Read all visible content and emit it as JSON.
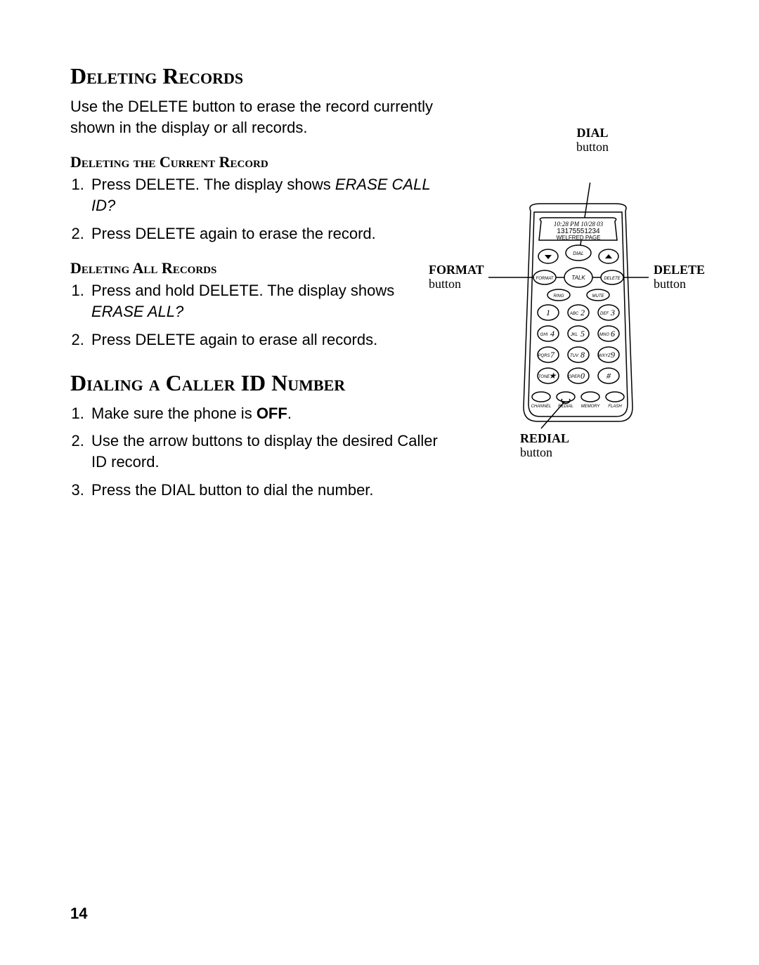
{
  "page_number": "14",
  "section1": {
    "title": "Deleting Records",
    "intro": "Use the DELETE button to erase the record currently shown in the display or all records.",
    "sub1": {
      "title": "Deleting the Current Record",
      "steps": [
        {
          "pre": "Press DELETE. The display shows ",
          "em": "ERASE CALL ID?"
        },
        {
          "pre": "Press DELETE again to erase the record."
        }
      ]
    },
    "sub2": {
      "title": "Deleting All Records",
      "steps": [
        {
          "pre": "Press and hold DELETE. The display shows ",
          "em": "ERASE ALL?"
        },
        {
          "pre": "Press DELETE again to erase all records."
        }
      ]
    }
  },
  "section2": {
    "title": "Dialing a Caller ID Number",
    "steps": [
      {
        "pre": "Make sure the phone is ",
        "strong": "OFF",
        "post": "."
      },
      {
        "pre": "Use the arrow buttons to display the desired Caller ID record."
      },
      {
        "pre": "Press the DIAL button to dial the number."
      }
    ]
  },
  "diagram": {
    "callouts": {
      "dial": {
        "bold": "DIAL",
        "plain": "button"
      },
      "format": {
        "bold": "FORMAT",
        "plain": "button"
      },
      "delete": {
        "bold": "DELETE",
        "plain": "button"
      },
      "redial": {
        "bold": "REDIAL",
        "plain": "button"
      }
    },
    "display": {
      "line1": "10:28 PM 10/28            03",
      "line2": "13175551234",
      "line3": "WELFRED PAGE"
    },
    "buttons": {
      "dial": "DIAL",
      "format": "FORMAT",
      "delete": "DELETE",
      "talk": "TALK",
      "ring": "RING",
      "mute": "MUTE",
      "keys": [
        {
          "sub": "",
          "num": "1"
        },
        {
          "sub": "ABC",
          "num": "2"
        },
        {
          "sub": "DEF",
          "num": "3"
        },
        {
          "sub": "GHI",
          "num": "4"
        },
        {
          "sub": "JKL",
          "num": "5"
        },
        {
          "sub": "MNO",
          "num": "6"
        },
        {
          "sub": "PQRS",
          "num": "7"
        },
        {
          "sub": "TUV",
          "num": "8"
        },
        {
          "sub": "WXYZ",
          "num": "9"
        },
        {
          "sub": "TONE",
          "num": "★"
        },
        {
          "sub": "OPER",
          "num": "0"
        },
        {
          "sub": "",
          "num": "#"
        }
      ],
      "bottom": [
        "CHANNEL",
        "REDIAL",
        "MEMORY",
        "FLASH"
      ]
    },
    "colors": {
      "stroke": "#000000",
      "background": "#ffffff"
    }
  }
}
